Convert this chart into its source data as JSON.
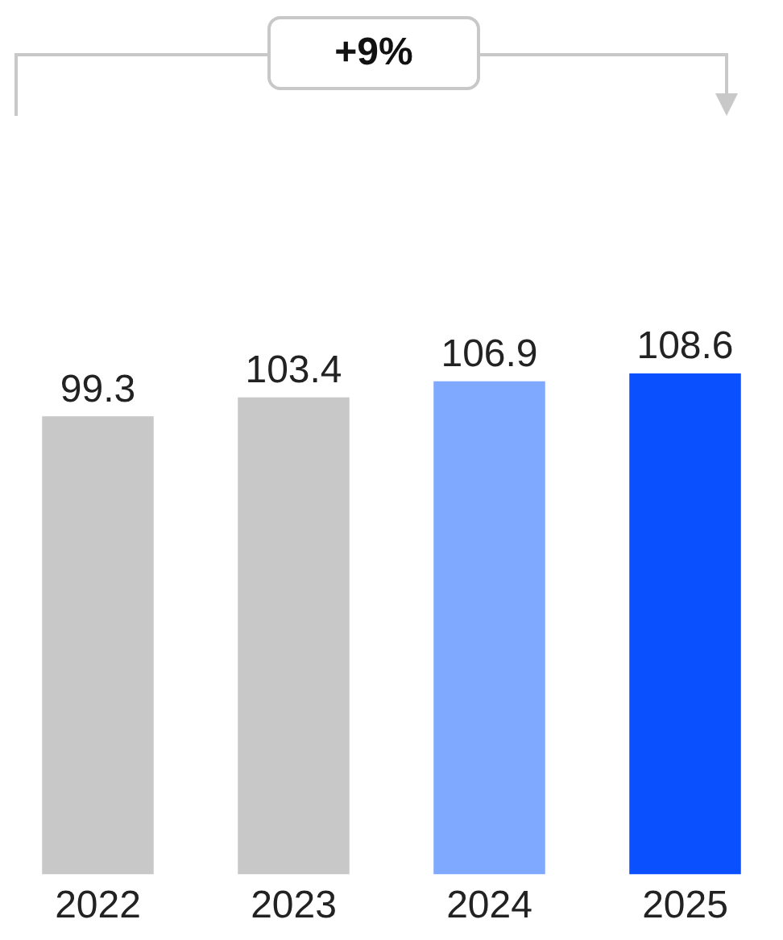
{
  "chart_data": {
    "type": "bar",
    "categories": [
      "2022",
      "2023",
      "2024",
      "2025"
    ],
    "values": [
      99.3,
      103.4,
      106.9,
      108.6
    ],
    "colors": [
      "#c8c8c8",
      "#c8c8c8",
      "#7fa8ff",
      "#0a50ff"
    ],
    "data_labels": true,
    "tick_labels": "x",
    "grid": false,
    "legend": false,
    "annotations": [
      "+9%"
    ]
  }
}
